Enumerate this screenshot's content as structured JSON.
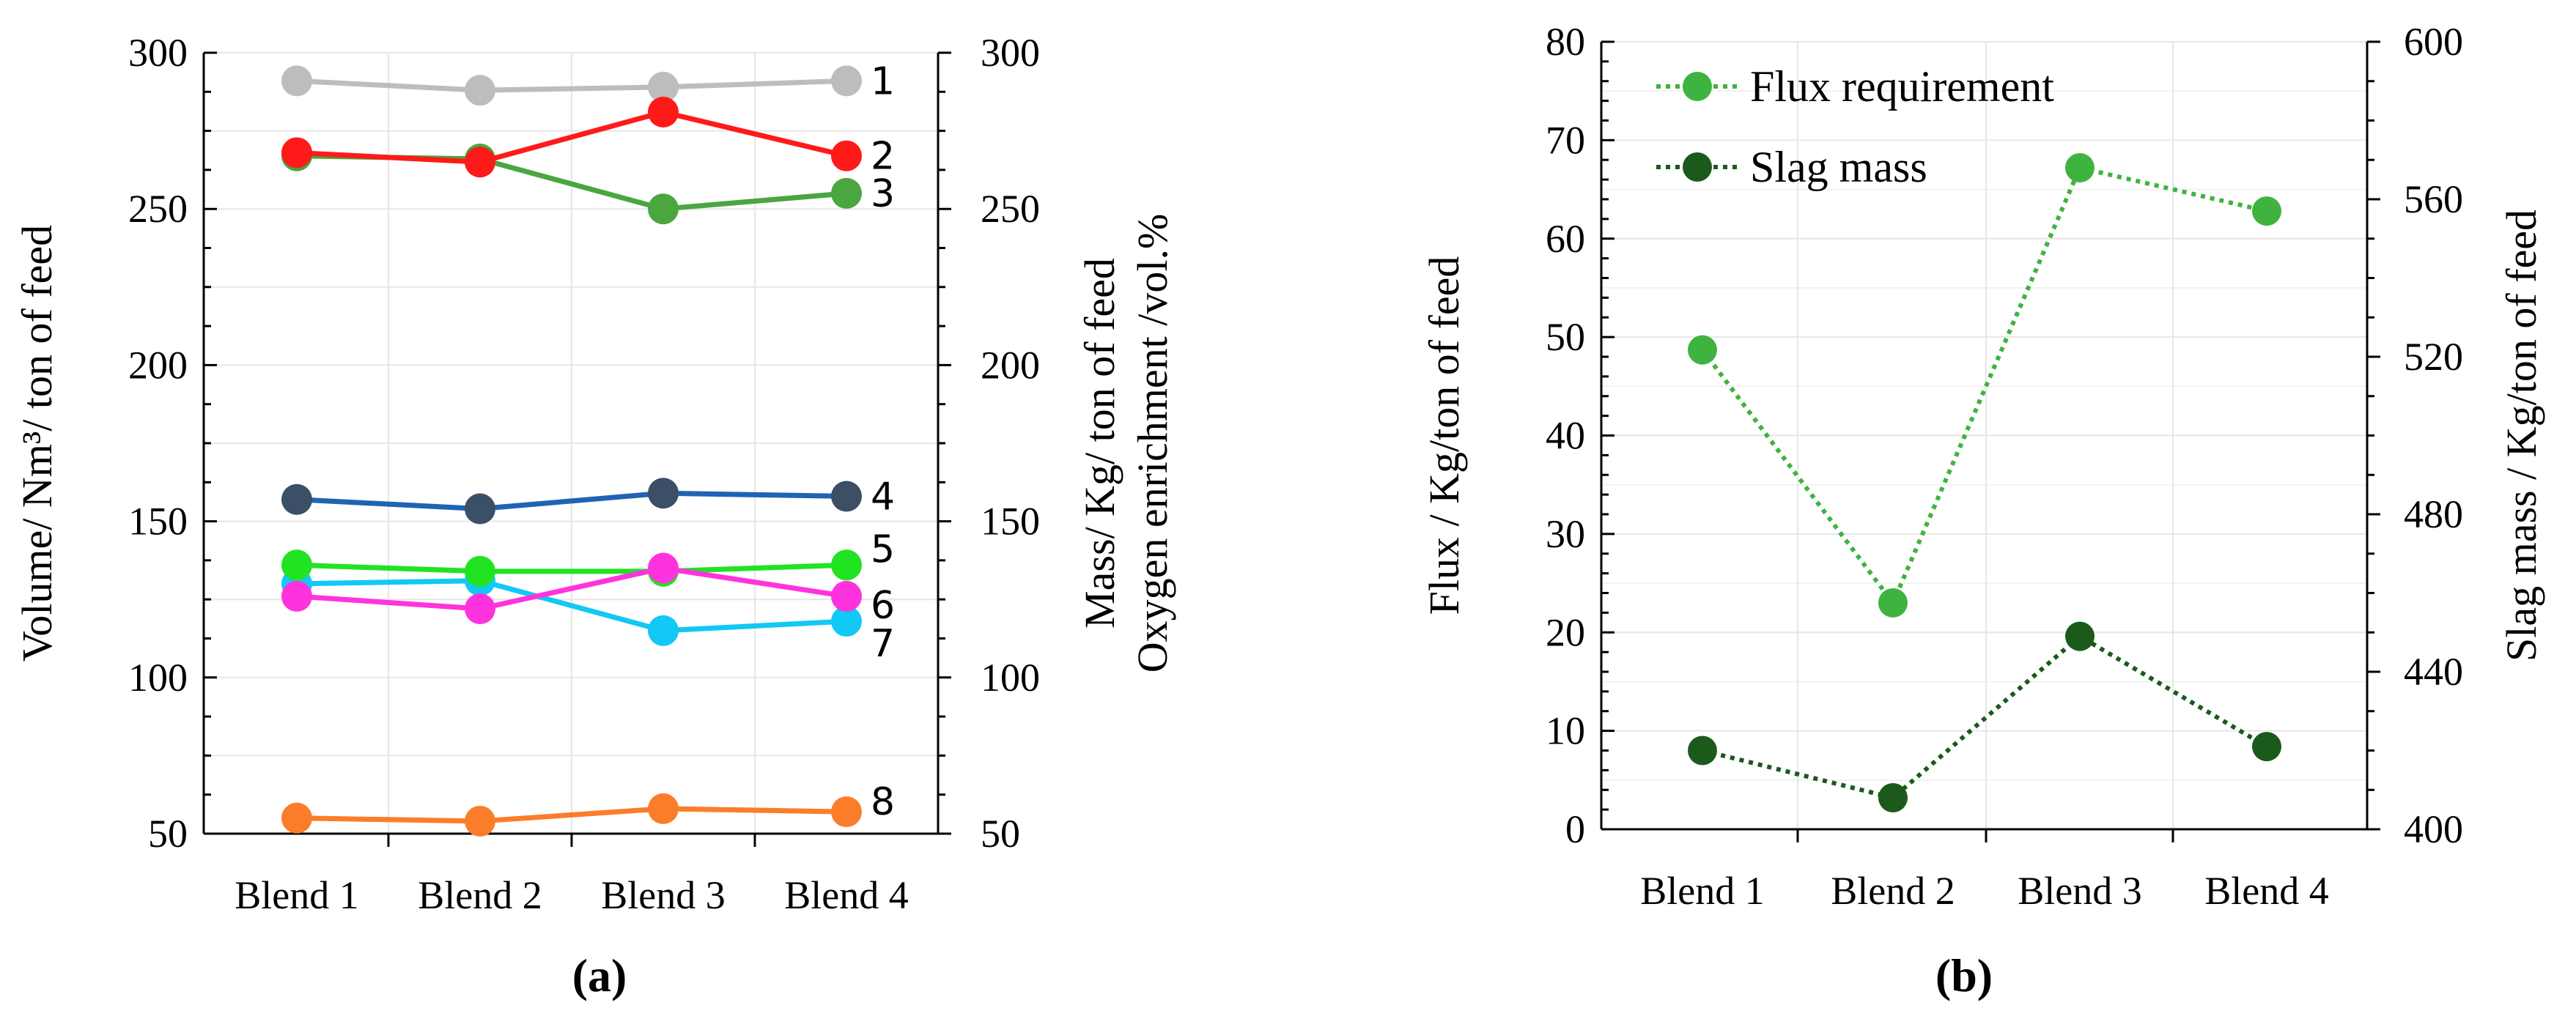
{
  "colors": {
    "s1": "#bdbdbd",
    "s2": "#ff1a1a",
    "s3": "#4aa63f",
    "s4": "#1f63b4",
    "s4_markers": "#3b4f66",
    "s5": "#22e322",
    "s6": "#ff33dd",
    "s7": "#12c8f5",
    "s8": "#fb7d2a",
    "flux": "#3fb33f",
    "slag": "#1b5a1b",
    "grid": "#e6e6e6",
    "axis": "#000000"
  },
  "chart_data": [
    {
      "type": "line",
      "caption": "(a)",
      "categories": [
        "Blend 1",
        "Blend 2",
        "Blend 3",
        "Blend 4"
      ],
      "ylabel_left": "Volume/ Nm³/ ton of feed",
      "ylabel_right_line1": "Mass/ Kg/ ton of feed",
      "ylabel_right_line2": "Oxygen enrichment /vol.%",
      "ylim": [
        50,
        300
      ],
      "yticks": [
        "50",
        "100",
        "150",
        "200",
        "250",
        "300"
      ],
      "grid": true,
      "series": [
        {
          "name": "1",
          "values": [
            291,
            288,
            289,
            291
          ]
        },
        {
          "name": "2",
          "values": [
            268,
            265,
            281,
            267
          ]
        },
        {
          "name": "3",
          "values": [
            267,
            266,
            250,
            255
          ]
        },
        {
          "name": "4",
          "values": [
            157,
            154,
            159,
            158
          ]
        },
        {
          "name": "5",
          "values": [
            136,
            134,
            134,
            136
          ]
        },
        {
          "name": "6",
          "values": [
            126,
            122,
            135,
            126
          ]
        },
        {
          "name": "7",
          "values": [
            130,
            131,
            115,
            118
          ]
        },
        {
          "name": "8",
          "values": [
            55,
            54,
            58,
            57
          ]
        }
      ]
    },
    {
      "type": "line",
      "caption": "(b)",
      "categories": [
        "Blend 1",
        "Blend 2",
        "Blend 3",
        "Blend 4"
      ],
      "ylabel_left": "Flux / Kg/ton of  feed",
      "ylabel_right": "Slag mass / Kg/ton of feed",
      "ylim_left": [
        0,
        80
      ],
      "ylim_right": [
        400,
        600
      ],
      "yticks_left": [
        "0",
        "10",
        "20",
        "30",
        "40",
        "50",
        "60",
        "70",
        "80"
      ],
      "yticks_right": [
        "400",
        "440",
        "480",
        "520",
        "560",
        "600"
      ],
      "grid": true,
      "legend_position": "top-left",
      "series": [
        {
          "name": "Flux requirement",
          "axis": "left",
          "style": "dotted",
          "values": [
            48.7,
            23,
            67.2,
            62.8
          ]
        },
        {
          "name": "Slag mass",
          "axis": "right",
          "style": "dotted",
          "values": [
            420,
            408,
            449,
            421
          ]
        }
      ]
    }
  ]
}
